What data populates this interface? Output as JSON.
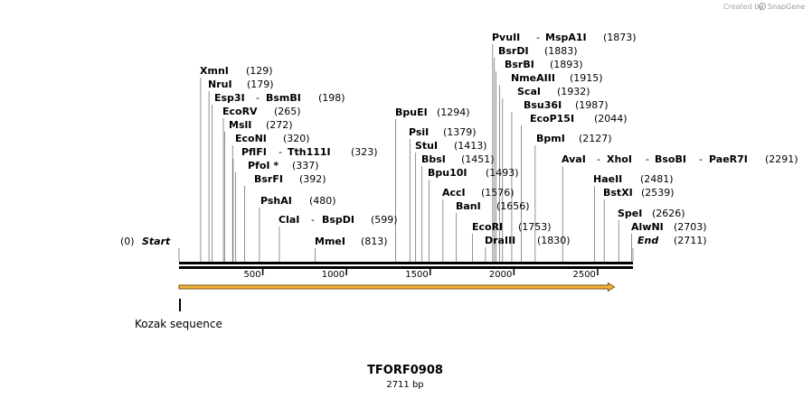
{
  "credit": {
    "prefix": "Created by",
    "brand": "SnapGene"
  },
  "sequence": {
    "name": "TFORF0908",
    "length_label": "2711 bp",
    "length": 2711
  },
  "start": {
    "label": "Start",
    "pos": "(0)",
    "value": 0
  },
  "end": {
    "label": "End",
    "pos": "(2711)",
    "value": 2711
  },
  "enzymes": [
    {
      "name": "XmnI",
      "pos": "(129)",
      "site": 129
    },
    {
      "name": "NruI",
      "pos": "(179)",
      "site": 179
    },
    {
      "name": "Esp3I",
      "alias": "BsmBI",
      "pos": "(198)",
      "site": 198
    },
    {
      "name": "EcoRV",
      "pos": "(265)",
      "site": 265
    },
    {
      "name": "MslI",
      "pos": "(272)",
      "site": 272
    },
    {
      "name": "EcoNI",
      "pos": "(320)",
      "site": 320
    },
    {
      "name": "PflFI",
      "alias": "Tth111I",
      "pos": "(323)",
      "site": 323
    },
    {
      "name": "PfoI *",
      "pos": "(337)",
      "site": 337
    },
    {
      "name": "BsrFI",
      "pos": "(392)",
      "site": 392
    },
    {
      "name": "PshAI",
      "pos": "(480)",
      "site": 480
    },
    {
      "name": "ClaI",
      "alias": "BspDI",
      "pos": "(599)",
      "site": 599
    },
    {
      "name": "MmeI",
      "pos": "(813)",
      "site": 813
    },
    {
      "name": "BpuEI",
      "pos": "(1294)",
      "site": 1294
    },
    {
      "name": "PsiI",
      "pos": "(1379)",
      "site": 1379
    },
    {
      "name": "StuI",
      "pos": "(1413)",
      "site": 1413
    },
    {
      "name": "BbsI",
      "pos": "(1451)",
      "site": 1451
    },
    {
      "name": "Bpu10I",
      "pos": "(1493)",
      "site": 1493
    },
    {
      "name": "AccI",
      "pos": "(1576)",
      "site": 1576
    },
    {
      "name": "BanI",
      "pos": "(1656)",
      "site": 1656
    },
    {
      "name": "EcoRI",
      "pos": "(1753)",
      "site": 1753
    },
    {
      "name": "DraIII",
      "pos": "(1830)",
      "site": 1830
    },
    {
      "name": "PvuII",
      "alias": "MspA1I",
      "pos": "(1873)",
      "site": 1873
    },
    {
      "name": "BsrDI",
      "pos": "(1883)",
      "site": 1883
    },
    {
      "name": "BsrBI",
      "pos": "(1893)",
      "site": 1893
    },
    {
      "name": "NmeAIII",
      "pos": "(1915)",
      "site": 1915
    },
    {
      "name": "ScaI",
      "pos": "(1932)",
      "site": 1932
    },
    {
      "name": "Bsu36I",
      "pos": "(1987)",
      "site": 1987
    },
    {
      "name": "EcoP15I",
      "pos": "(2044)",
      "site": 2044
    },
    {
      "name": "BpmI",
      "pos": "(2127)",
      "site": 2127
    },
    {
      "name": "AvaI",
      "alias": "XhoI",
      "alias2": "BsoBI",
      "alias3": "PaeR7I",
      "pos": "(2291)",
      "site": 2291
    },
    {
      "name": "HaeII",
      "pos": "(2481)",
      "site": 2481
    },
    {
      "name": "BstXI",
      "pos": "(2539)",
      "site": 2539
    },
    {
      "name": "SpeI",
      "pos": "(2626)",
      "site": 2626
    },
    {
      "name": "AlwNI",
      "pos": "(2703)",
      "site": 2703
    }
  ],
  "ticks": [
    {
      "label": "500",
      "value": 500
    },
    {
      "label": "1000",
      "value": 1000
    },
    {
      "label": "1500",
      "value": 1500
    },
    {
      "label": "2000",
      "value": 2000
    },
    {
      "label": "2500",
      "value": 2500
    }
  ],
  "orf": {
    "start": 0,
    "end": 2600
  },
  "feature": {
    "label": "Kozak sequence",
    "site": 0
  },
  "colors": {
    "orf_fill": "#f3b43a",
    "orf_edge": "#7a4f0a",
    "backbone": "#000000",
    "credit": "#a6a6a6"
  }
}
